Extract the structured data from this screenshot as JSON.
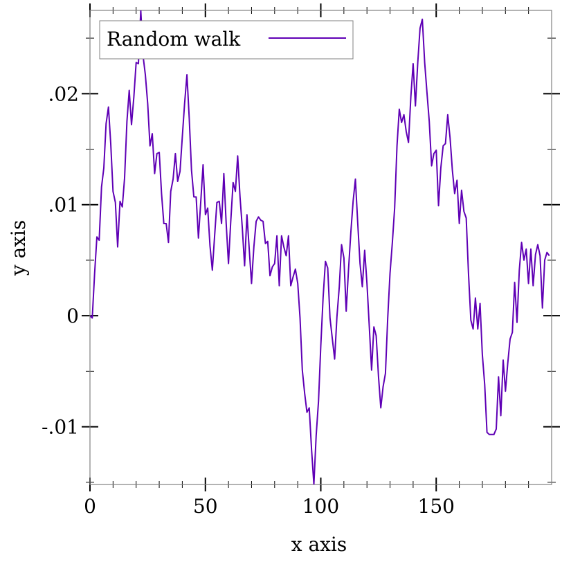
{
  "chart_data": {
    "type": "line",
    "title": "",
    "xlabel": "x axis",
    "ylabel": "y axis",
    "xlim": [
      0,
      200
    ],
    "ylim": [
      -0.0152,
      0.0275
    ],
    "x_ticks": [
      0,
      50,
      100,
      150
    ],
    "x_tick_labels": [
      "0",
      "50",
      "100",
      "150"
    ],
    "y_ticks": [
      -0.01,
      0,
      0.01,
      0.02
    ],
    "y_tick_labels": [
      "-.01",
      "0",
      ".01",
      ".02"
    ],
    "grid": false,
    "legend": {
      "placement": "top-left",
      "entries": [
        "Random walk"
      ]
    },
    "colors": {
      "series": "#5f00b5",
      "axis": "#808080"
    },
    "series": [
      {
        "name": "Random walk",
        "x_start": 0,
        "x_step": 1,
        "values": [
          0,
          -0.0002,
          0.0038,
          0.0071,
          0.0068,
          0.0116,
          0.0133,
          0.0173,
          0.0188,
          0.0155,
          0.0112,
          0.0102,
          0.0062,
          0.0103,
          0.0098,
          0.0124,
          0.0175,
          0.0203,
          0.0172,
          0.0197,
          0.0228,
          0.0227,
          0.0275,
          0.0234,
          0.0217,
          0.0191,
          0.0153,
          0.0164,
          0.0128,
          0.0146,
          0.0147,
          0.011,
          0.0083,
          0.0083,
          0.0066,
          0.0112,
          0.0123,
          0.0146,
          0.0121,
          0.013,
          0.0161,
          0.0191,
          0.0217,
          0.0178,
          0.0131,
          0.0107,
          0.0107,
          0.007,
          0.0103,
          0.0136,
          0.0091,
          0.0097,
          0.0063,
          0.0041,
          0.0072,
          0.0102,
          0.0103,
          0.0083,
          0.0128,
          0.0083,
          0.0047,
          0.0085,
          0.012,
          0.0112,
          0.0144,
          0.0107,
          0.0079,
          0.0045,
          0.0091,
          0.006,
          0.0029,
          0.0062,
          0.0085,
          0.0089,
          0.0086,
          0.0085,
          0.0065,
          0.0067,
          0.0036,
          0.0044,
          0.0047,
          0.0072,
          0.0027,
          0.0072,
          0.0062,
          0.0054,
          0.0072,
          0.0027,
          0.0035,
          0.0042,
          0.0029,
          -0.0002,
          -0.0049,
          -0.007,
          -0.0087,
          -0.0083,
          -0.0121,
          -0.0152,
          -0.0108,
          -0.0077,
          -0.0027,
          0.0016,
          0.0049,
          0.0043,
          -0.0002,
          -0.0021,
          -0.0039,
          -0.0001,
          0.0026,
          0.0064,
          0.0052,
          0.0004,
          0.0041,
          0.0075,
          0.0103,
          0.0123,
          0.0083,
          0.0047,
          0.0026,
          0.0059,
          0.0029,
          -0.0009,
          -0.0049,
          -0.001,
          -0.0018,
          -0.0055,
          -0.0083,
          -0.0064,
          -0.0052,
          -0.0002,
          0.0038,
          0.0066,
          0.0097,
          0.0153,
          0.0186,
          0.0174,
          0.0181,
          0.0166,
          0.0156,
          0.0197,
          0.0227,
          0.0189,
          0.0228,
          0.0259,
          0.0267,
          0.0228,
          0.0201,
          0.0175,
          0.0135,
          0.0146,
          0.0149,
          0.0099,
          0.0133,
          0.0153,
          0.0155,
          0.0181,
          0.016,
          0.0131,
          0.011,
          0.0122,
          0.0083,
          0.0113,
          0.0094,
          0.0088,
          0.0038,
          -0.0004,
          -0.0012,
          0.0016,
          -0.0012,
          0.0011,
          -0.0035,
          -0.0062,
          -0.0105,
          -0.0107,
          -0.0107,
          -0.0107,
          -0.0102,
          -0.0055,
          -0.009,
          -0.004,
          -0.0068,
          -0.0043,
          -0.0021,
          -0.0015,
          0.003,
          -0.0006,
          0.0041,
          0.0066,
          0.005,
          0.006,
          0.0029,
          0.006,
          0.0027,
          0.0055,
          0.0064,
          0.0054,
          0.0007,
          0.005,
          0.0057,
          0.0054
        ]
      }
    ]
  }
}
